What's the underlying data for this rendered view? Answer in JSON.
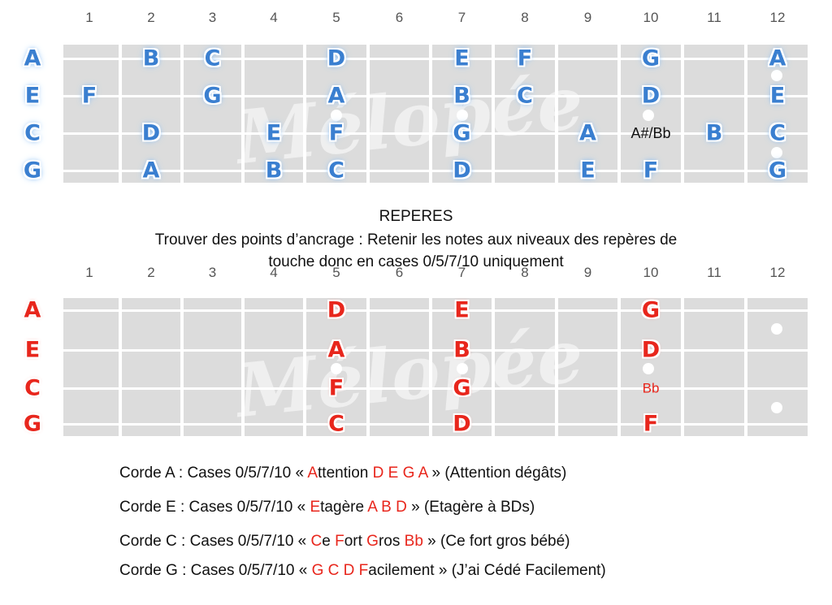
{
  "fret_numbers": [
    "1",
    "2",
    "3",
    "4",
    "5",
    "6",
    "7",
    "8",
    "9",
    "10",
    "11",
    "12"
  ],
  "watermark_text": "Mélopée",
  "top_board": {
    "strings": [
      "A",
      "E",
      "C",
      "G"
    ],
    "notes": [
      {
        "string": 0,
        "fret": 1,
        "label": "B"
      },
      {
        "string": 0,
        "fret": 2,
        "label": "C"
      },
      {
        "string": 0,
        "fret": 4,
        "label": "D"
      },
      {
        "string": 0,
        "fret": 6,
        "label": "E"
      },
      {
        "string": 0,
        "fret": 7,
        "label": "F"
      },
      {
        "string": 0,
        "fret": 9,
        "label": "G"
      },
      {
        "string": 0,
        "fret": 11,
        "label": "A"
      },
      {
        "string": 1,
        "fret": 0,
        "label": "F"
      },
      {
        "string": 1,
        "fret": 2,
        "label": "G"
      },
      {
        "string": 1,
        "fret": 4,
        "label": "A"
      },
      {
        "string": 1,
        "fret": 6,
        "label": "B"
      },
      {
        "string": 1,
        "fret": 7,
        "label": "C"
      },
      {
        "string": 1,
        "fret": 9,
        "label": "D"
      },
      {
        "string": 1,
        "fret": 11,
        "label": "E"
      },
      {
        "string": 2,
        "fret": 1,
        "label": "D"
      },
      {
        "string": 2,
        "fret": 3,
        "label": "E"
      },
      {
        "string": 2,
        "fret": 4,
        "label": "F"
      },
      {
        "string": 2,
        "fret": 6,
        "label": "G"
      },
      {
        "string": 2,
        "fret": 8,
        "label": "A"
      },
      {
        "string": 2,
        "fret": 9,
        "label": "A#/Bb",
        "style": "plain-black"
      },
      {
        "string": 2,
        "fret": 10,
        "label": "B"
      },
      {
        "string": 2,
        "fret": 11,
        "label": "C"
      },
      {
        "string": 3,
        "fret": 1,
        "label": "A"
      },
      {
        "string": 3,
        "fret": 3,
        "label": "B"
      },
      {
        "string": 3,
        "fret": 4,
        "label": "C"
      },
      {
        "string": 3,
        "fret": 6,
        "label": "D"
      },
      {
        "string": 3,
        "fret": 8,
        "label": "E"
      },
      {
        "string": 3,
        "fret": 9,
        "label": "F"
      },
      {
        "string": 3,
        "fret": 11,
        "label": "G"
      }
    ]
  },
  "heading": {
    "title": "REPERES",
    "line1": "Trouver des points d’ancrage : Retenir les notes aux niveaux des repères de",
    "line2": "touche donc en cases 0/5/7/10 uniquement"
  },
  "bottom_board": {
    "strings": [
      "A",
      "E",
      "C",
      "G"
    ],
    "notes": [
      {
        "string": 0,
        "fret": 4,
        "label": "D"
      },
      {
        "string": 0,
        "fret": 6,
        "label": "E"
      },
      {
        "string": 0,
        "fret": 9,
        "label": "G"
      },
      {
        "string": 1,
        "fret": 4,
        "label": "A"
      },
      {
        "string": 1,
        "fret": 6,
        "label": "B"
      },
      {
        "string": 1,
        "fret": 9,
        "label": "D"
      },
      {
        "string": 2,
        "fret": 4,
        "label": "F"
      },
      {
        "string": 2,
        "fret": 6,
        "label": "G"
      },
      {
        "string": 2,
        "fret": 9,
        "label": "Bb",
        "style": "plain-red"
      },
      {
        "string": 3,
        "fret": 4,
        "label": "C"
      },
      {
        "string": 3,
        "fret": 6,
        "label": "D"
      },
      {
        "string": 3,
        "fret": 9,
        "label": "F"
      }
    ]
  },
  "rules": [
    [
      {
        "t": "Corde A : Cases 0/5/7/10 « ",
        "red": false
      },
      {
        "t": "A",
        "red": true
      },
      {
        "t": "ttention ",
        "red": false
      },
      {
        "t": "D E G A",
        "red": true
      },
      {
        "t": " » (Attention dégâts)",
        "red": false
      }
    ],
    [
      {
        "t": "Corde E : Cases 0/5/7/10 « ",
        "red": false
      },
      {
        "t": "E",
        "red": true
      },
      {
        "t": "tagère ",
        "red": false
      },
      {
        "t": "A B D",
        "red": true
      },
      {
        "t": " » (Etagère à BDs)",
        "red": false
      }
    ],
    [
      {
        "t": "Corde C : Cases 0/5/7/10 « ",
        "red": false
      },
      {
        "t": "C",
        "red": true
      },
      {
        "t": "e ",
        "red": false
      },
      {
        "t": "F",
        "red": true
      },
      {
        "t": "ort ",
        "red": false
      },
      {
        "t": "G",
        "red": true
      },
      {
        "t": "ros ",
        "red": false
      },
      {
        "t": "Bb",
        "red": true
      },
      {
        "t": " » (Ce fort gros bébé)",
        "red": false
      }
    ],
    [
      {
        "t": "Corde G : Cases 0/5/7/10 « ",
        "red": false
      },
      {
        "t": "G C D F",
        "red": true
      },
      {
        "t": "acilement » (J’ai Cédé Facilement)",
        "red": false
      }
    ]
  ],
  "colors": {
    "note_blue": "#3a7fd0",
    "note_red": "#e8261c",
    "board_bg": "#dcdcdc"
  }
}
